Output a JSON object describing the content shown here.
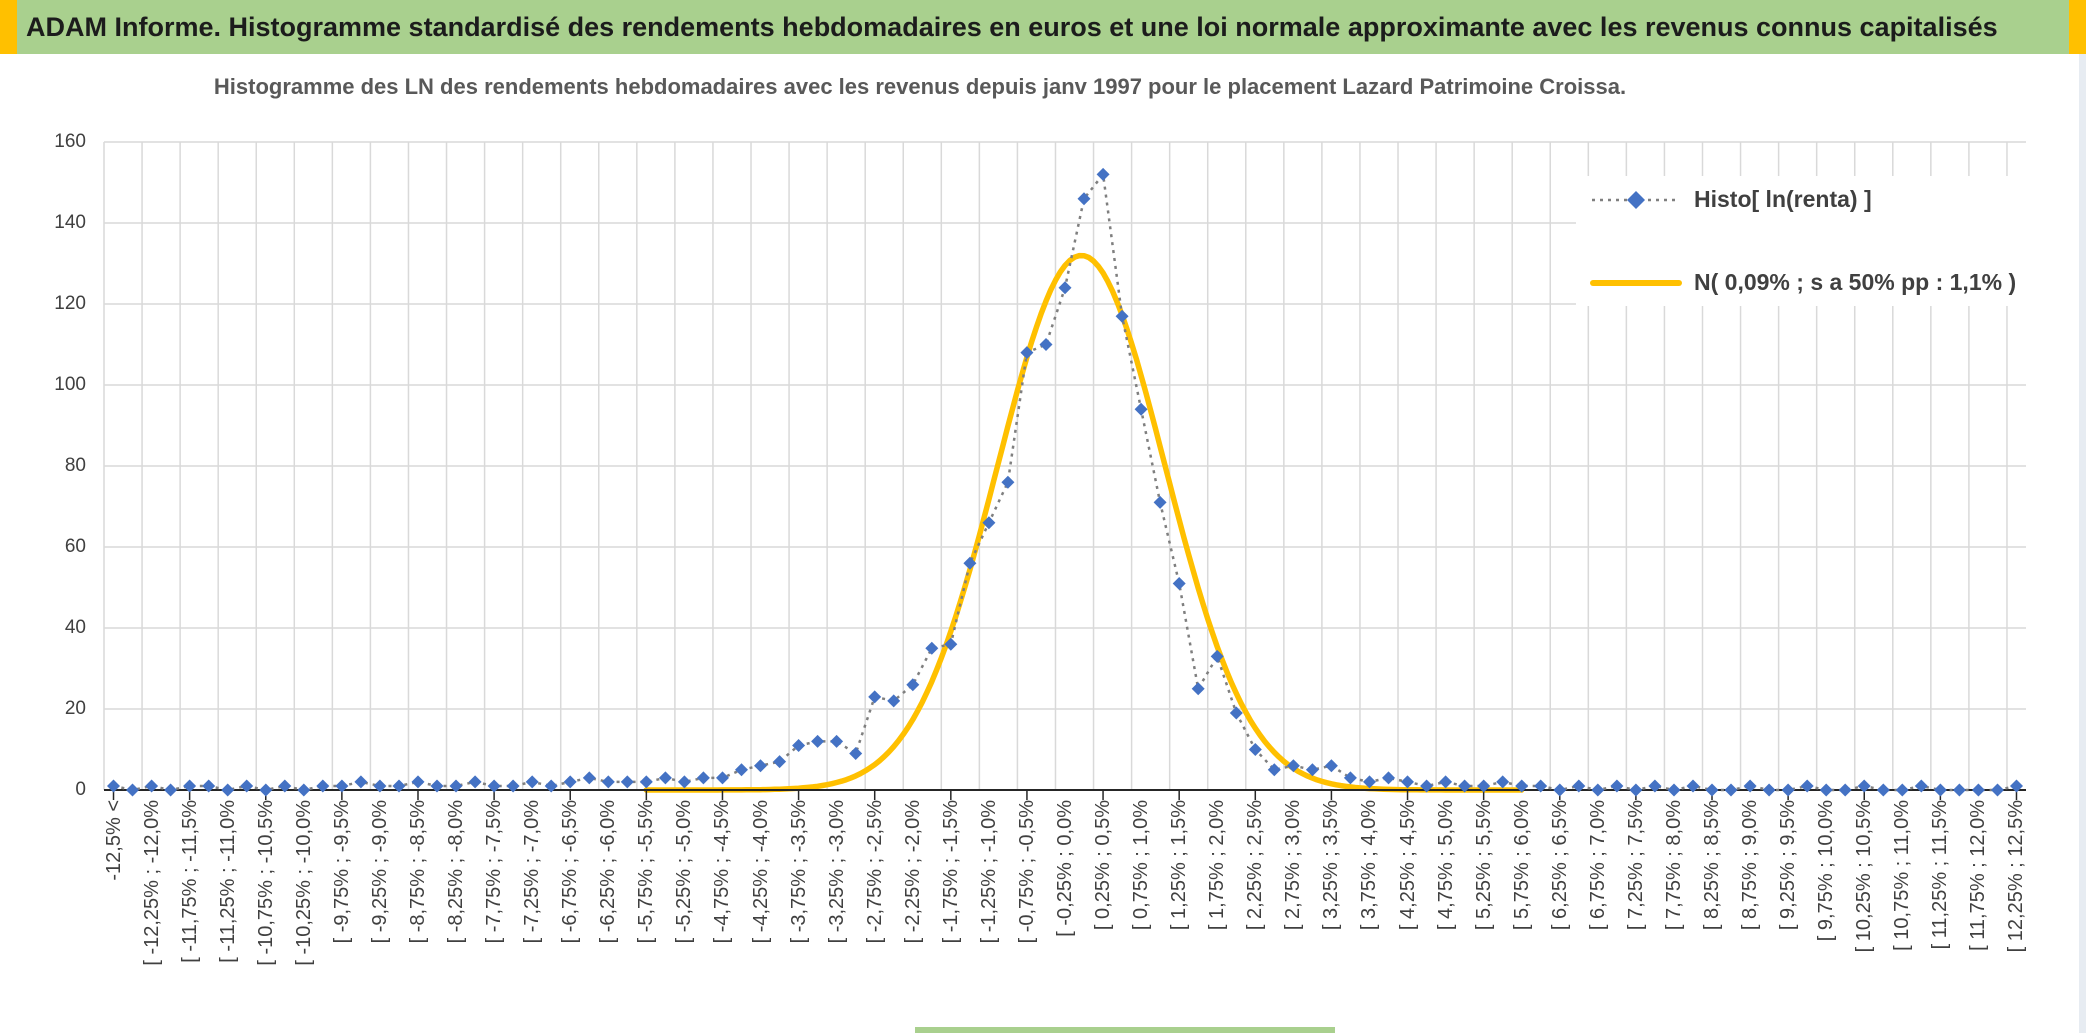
{
  "banner": {
    "title": "ADAM Informe. Histogramme standardisé des rendements hebdomadaires en euros et une loi normale approximante avec les revenus connus capitalisés",
    "bg_color": "#a9d08e",
    "accent_color": "#ffc000",
    "text_color": "#1c1c1c"
  },
  "chart_data": {
    "type": "line",
    "title": "Histogramme des LN des rendements hebdomadaires avec les revenus depuis janv 1997 pour le placement Lazard Patrimoine Croissa.",
    "xlabel": "",
    "ylabel": "",
    "ylim": [
      0,
      160
    ],
    "yticks": [
      0,
      20,
      40,
      60,
      80,
      100,
      120,
      140,
      160
    ],
    "grid": true,
    "legend_position": "top-right",
    "n_points": 101,
    "label_every": 2,
    "x_tick_labels": [
      "-12,5% <",
      "[ -12,25% ; -12,0%",
      "[ -11,75% ; -11,5%",
      "[ -11,25% ; -11,0%",
      "[ -10,75% ; -10,5%",
      "[ -10,25% ; -10,0%",
      "[ -9,75% ; -9,5%",
      "[ -9,25% ; -9,0%",
      "[ -8,75% ; -8,5%",
      "[ -8,25% ; -8,0%",
      "[ -7,75% ; -7,5%",
      "[ -7,25% ; -7,0%",
      "[ -6,75% ; -6,5%",
      "[ -6,25% ; -6,0%",
      "[ -5,75% ; -5,5%",
      "[ -5,25% ; -5,0%",
      "[ -4,75% ; -4,5%",
      "[ -4,25% ; -4,0%",
      "[ -3,75% ; -3,5%",
      "[ -3,25% ; -3,0%",
      "[ -2,75% ; -2,5%",
      "[ -2,25% ; -2,0%",
      "[ -1,75% ; -1,5%",
      "[ -1,25% ; -1,0%",
      "[ -0,75% ; -0,5%",
      "[ -0,25% ; 0,0%",
      "[ 0,25% ; 0,5%",
      "[ 0,75% ; 1,0%",
      "[ 1,25% ; 1,5%",
      "[ 1,75% ; 2,0%",
      "[ 2,25% ; 2,5%",
      "[ 2,75% ; 3,0%",
      "[ 3,25% ; 3,5%",
      "[ 3,75% ; 4,0%",
      "[ 4,25% ; 4,5%",
      "[ 4,75% ; 5,0%",
      "[ 5,25% ; 5,5%",
      "[ 5,75% ; 6,0%",
      "[ 6,25% ; 6,5%",
      "[ 6,75% ; 7,0%",
      "[ 7,25% ; 7,5%",
      "[ 7,75% ; 8,0%",
      "[ 8,25% ; 8,5%",
      "[ 8,75% ; 9,0%",
      "[ 9,25% ; 9,5%",
      "[ 9,75% ; 10,0%",
      "[ 10,25% ; 10,5%",
      "[ 10,75% ; 11,0%",
      "[ 11,25% ; 11,5%",
      "[ 11,75% ; 12,0%",
      "[ 12,25% ; 12,5%"
    ],
    "series": [
      {
        "name": "Histo[ ln(renta) ]",
        "type": "line-markers",
        "marker": "diamond",
        "marker_color": "#4472c4",
        "line_color": "#7f7f7f",
        "line_style": "dotted",
        "values": [
          1,
          0,
          1,
          0,
          1,
          1,
          0,
          1,
          0,
          1,
          0,
          1,
          1,
          2,
          1,
          1,
          2,
          1,
          1,
          2,
          1,
          1,
          2,
          1,
          2,
          3,
          2,
          2,
          2,
          3,
          2,
          3,
          3,
          5,
          6,
          7,
          11,
          12,
          12,
          9,
          23,
          22,
          26,
          35,
          36,
          56,
          66,
          76,
          108,
          110,
          124,
          146,
          152,
          117,
          94,
          71,
          51,
          25,
          33,
          19,
          10,
          5,
          6,
          5,
          6,
          3,
          2,
          3,
          2,
          1,
          2,
          1,
          1,
          2,
          1,
          1,
          0,
          1,
          0,
          1,
          0,
          1,
          0,
          1,
          0,
          0,
          1,
          0,
          0,
          1,
          0,
          0,
          1,
          0,
          0,
          1,
          0,
          0,
          0,
          0,
          1
        ]
      },
      {
        "name": "N( 0,09% ; s a 50% pp : 1,1% )",
        "type": "smooth-line",
        "line_color": "#ffc000",
        "line_style": "solid",
        "normal_params": {
          "mean_pct": 0.09,
          "sigma_pct": 1.1,
          "peak_height": 132,
          "bin_width_pct": 0.25,
          "x_min_pct": -12.5
        }
      }
    ]
  },
  "footer": {
    "strip_color": "#a9d08e"
  }
}
